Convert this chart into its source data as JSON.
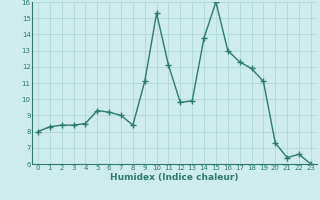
{
  "x": [
    0,
    1,
    2,
    3,
    4,
    5,
    6,
    7,
    8,
    9,
    10,
    11,
    12,
    13,
    14,
    15,
    16,
    17,
    18,
    19,
    20,
    21,
    22,
    23
  ],
  "y": [
    8.0,
    8.3,
    8.4,
    8.4,
    8.5,
    9.3,
    9.2,
    9.0,
    8.4,
    11.1,
    15.3,
    12.1,
    9.8,
    9.9,
    13.8,
    16.0,
    13.0,
    12.3,
    11.9,
    11.1,
    7.3,
    6.4,
    6.6,
    6.0
  ],
  "xlabel": "Humidex (Indice chaleur)",
  "ylim": [
    6,
    16
  ],
  "xlim": [
    -0.5,
    23.5
  ],
  "yticks": [
    6,
    7,
    8,
    9,
    10,
    11,
    12,
    13,
    14,
    15,
    16
  ],
  "xticks": [
    0,
    1,
    2,
    3,
    4,
    5,
    6,
    7,
    8,
    9,
    10,
    11,
    12,
    13,
    14,
    15,
    16,
    17,
    18,
    19,
    20,
    21,
    22,
    23
  ],
  "line_color": "#2d7a6e",
  "bg_color": "#cdecea",
  "grid_color": "#b0d8d4",
  "marker": "+",
  "marker_size": 4,
  "line_width": 1.0,
  "tick_fontsize": 5,
  "xlabel_fontsize": 6.5
}
